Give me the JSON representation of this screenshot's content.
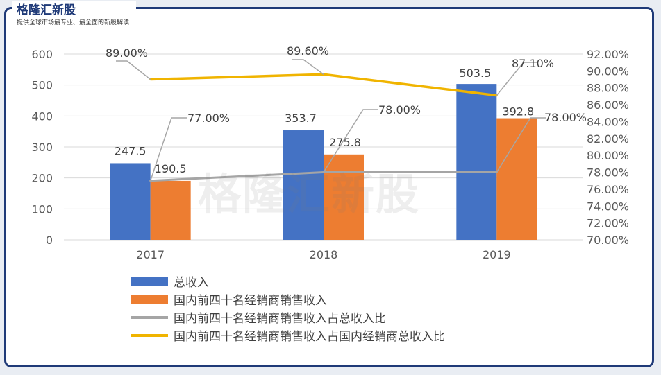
{
  "header": {
    "brand": "格隆汇新股",
    "subtitle": "提供全球市场最专业、最全面的新股解读"
  },
  "watermark": "格隆汇新股",
  "chart_data": {
    "type": "bar",
    "categories": [
      "2017",
      "2018",
      "2019"
    ],
    "y_left": {
      "ticks": [
        "0",
        "100",
        "200",
        "300",
        "400",
        "500",
        "600"
      ],
      "ylim": [
        0,
        600
      ]
    },
    "y_right": {
      "ticks": [
        "70.00%",
        "72.00%",
        "74.00%",
        "76.00%",
        "78.00%",
        "80.00%",
        "82.00%",
        "84.00%",
        "86.00%",
        "88.00%",
        "90.00%",
        "92.00%"
      ],
      "ylim": [
        70,
        92
      ]
    },
    "bar_series": [
      {
        "name": "总收入",
        "color": "#4472c4",
        "values": [
          247.5,
          353.7,
          503.5
        ],
        "labels": [
          "247.5",
          "353.7",
          "503.5"
        ]
      },
      {
        "name": "国内前四十名经销商销售收入",
        "color": "#ed7d31",
        "values": [
          190.5,
          275.8,
          392.8
        ],
        "labels": [
          "190.5",
          "275.8",
          "392.8"
        ]
      }
    ],
    "line_series": [
      {
        "name": "国内前四十名经销商销售收入占总收入比",
        "color": "#a5a5a5",
        "values": [
          77.0,
          78.0,
          78.0
        ],
        "labels": [
          "77.00%",
          "78.00%",
          "78.00%"
        ]
      },
      {
        "name": "国内前四十名经销商销售收入占国内经销商总收入比",
        "color": "#f0b400",
        "values": [
          89.0,
          89.6,
          87.1
        ],
        "labels": [
          "89.00%",
          "89.60%",
          "87.10%"
        ]
      }
    ],
    "legend_position": "bottom-left"
  },
  "colors": {
    "frame": "#1f3a78",
    "grid": "#d9d9d9",
    "axis_text": "#595959",
    "label_text": "#404040",
    "callout": "#a6a6a6"
  }
}
